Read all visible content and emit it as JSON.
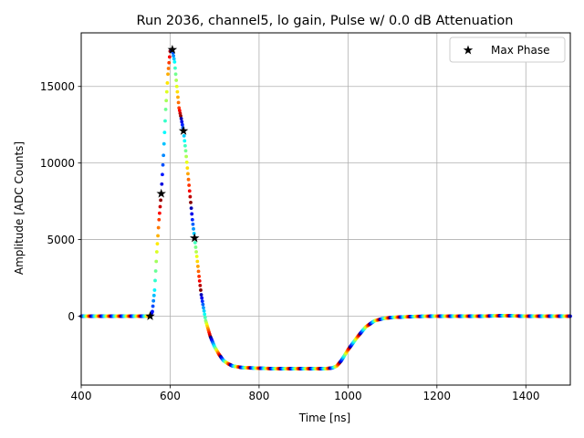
{
  "chart_data": {
    "type": "scatter",
    "title": "Run 2036, channel5, lo gain, Pulse w/ 0.0 dB Attenuation",
    "xlabel": "Time [ns]",
    "ylabel": "Amplitude [ADC Counts]",
    "xlim": [
      400,
      1500
    ],
    "ylim": [
      -4500,
      18500
    ],
    "x_ticks": [
      400,
      600,
      800,
      1000,
      1200,
      1400
    ],
    "x_tick_labels": [
      "400",
      "600",
      "800",
      "1000",
      "1200",
      "1400"
    ],
    "y_ticks": [
      0,
      5000,
      10000,
      15000
    ],
    "y_tick_labels": [
      "0",
      "5000",
      "10000",
      "15000"
    ],
    "grid": true,
    "legend": {
      "position": "top-right",
      "entries": [
        {
          "label": "Max Phase",
          "marker": "star",
          "color": "#000000"
        }
      ]
    },
    "colormap": "jet",
    "series": [
      {
        "name": "Pulse",
        "x": [
          400,
          550,
          555,
          560,
          565,
          570,
          575,
          580,
          585,
          590,
          595,
          600,
          605,
          610,
          615,
          620,
          625,
          630,
          635,
          640,
          645,
          650,
          655,
          660,
          665,
          670,
          680,
          690,
          700,
          710,
          720,
          730,
          740,
          750,
          760,
          780,
          800,
          825,
          850,
          900,
          950,
          965,
          975,
          985,
          1000,
          1020,
          1040,
          1060,
          1080,
          1100,
          1150,
          1200,
          1300,
          1350,
          1400,
          1500
        ],
        "y": [
          0,
          0,
          0,
          300,
          1700,
          4200,
          6300,
          8000,
          10500,
          13500,
          15800,
          17300,
          17400,
          16600,
          15000,
          13600,
          12900,
          12100,
          10800,
          9300,
          7800,
          6300,
          5100,
          3900,
          2600,
          1400,
          -300,
          -1300,
          -2000,
          -2500,
          -2900,
          -3100,
          -3250,
          -3300,
          -3350,
          -3380,
          -3400,
          -3420,
          -3430,
          -3430,
          -3430,
          -3380,
          -3250,
          -2900,
          -2200,
          -1400,
          -700,
          -300,
          -150,
          -80,
          -20,
          0,
          0,
          30,
          0,
          0
        ]
      },
      {
        "name": "Max Phase",
        "x": [
          555,
          580,
          605,
          630,
          655
        ],
        "y": [
          0,
          8000,
          17400,
          12100,
          5100
        ]
      }
    ]
  }
}
